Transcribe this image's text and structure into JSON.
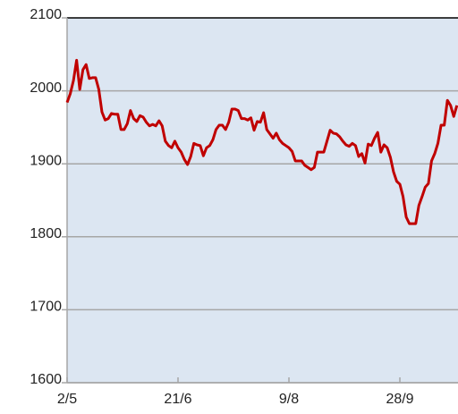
{
  "chart_data": {
    "type": "line",
    "categories": [
      "2/5",
      null,
      null,
      null,
      null,
      null,
      null,
      null,
      null,
      null,
      null,
      null,
      null,
      null,
      null,
      null,
      null,
      null,
      null,
      null,
      null,
      null,
      null,
      null,
      null,
      null,
      null,
      null,
      null,
      null,
      null,
      null,
      null,
      null,
      null,
      "21/6",
      null,
      null,
      null,
      null,
      null,
      null,
      null,
      null,
      null,
      null,
      null,
      null,
      null,
      null,
      null,
      null,
      null,
      null,
      null,
      null,
      null,
      null,
      null,
      null,
      null,
      null,
      null,
      null,
      null,
      null,
      null,
      null,
      null,
      null,
      "9/8",
      null,
      null,
      null,
      null,
      null,
      null,
      null,
      null,
      null,
      null,
      null,
      null,
      null,
      null,
      null,
      null,
      null,
      null,
      null,
      null,
      null,
      null,
      null,
      null,
      null,
      null,
      null,
      null,
      null,
      null,
      null,
      null,
      null,
      null,
      "28/9",
      null,
      null,
      null,
      null,
      null,
      null,
      null,
      null,
      null,
      null,
      null,
      null,
      null,
      null,
      null,
      null,
      null,
      null
    ],
    "series": [
      {
        "color": "#c00000",
        "values": [
          1984,
          1996,
          2014,
          2042,
          2002,
          2029,
          2036,
          2017,
          2018,
          2018,
          2002,
          1971,
          1960,
          1962,
          1969,
          1968,
          1968,
          1947,
          1947,
          1955,
          1973,
          1962,
          1958,
          1966,
          1964,
          1957,
          1952,
          1954,
          1952,
          1959,
          1952,
          1931,
          1925,
          1922,
          1931,
          1922,
          1916,
          1906,
          1899,
          1910,
          1928,
          1926,
          1925,
          1911,
          1922,
          1925,
          1933,
          1947,
          1953,
          1953,
          1947,
          1957,
          1975,
          1975,
          1973,
          1962,
          1962,
          1960,
          1963,
          1946,
          1958,
          1957,
          1970,
          1947,
          1941,
          1935,
          1942,
          1933,
          1928,
          1925,
          1922,
          1917,
          1904,
          1904,
          1904,
          1898,
          1895,
          1892,
          1895,
          1916,
          1916,
          1916,
          1931,
          1946,
          1942,
          1941,
          1937,
          1931,
          1926,
          1924,
          1928,
          1925,
          1910,
          1914,
          1901,
          1927,
          1925,
          1935,
          1943,
          1916,
          1926,
          1922,
          1909,
          1889,
          1876,
          1872,
          1855,
          1827,
          1818,
          1818,
          1818,
          1843,
          1855,
          1868,
          1873,
          1904,
          1914,
          1928,
          1953,
          1953,
          1987,
          1980,
          1965,
          1980
        ]
      }
    ],
    "ylim": [
      1600,
      2100
    ],
    "yticks": [
      1600,
      1700,
      1800,
      1900,
      2000,
      2100
    ],
    "grid": true
  }
}
